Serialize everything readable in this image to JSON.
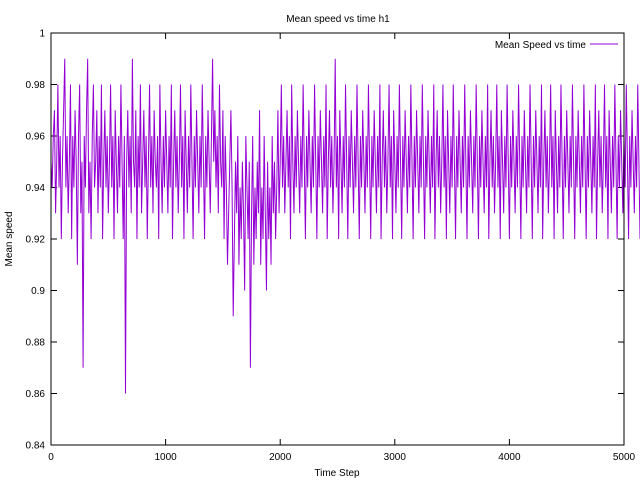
{
  "chart_data": {
    "type": "line",
    "title": "Mean speed vs time h1",
    "xlabel": "Time Step",
    "ylabel": "Mean speed",
    "xlim": [
      0,
      5000
    ],
    "ylim": [
      0.84,
      1.0
    ],
    "xticks": [
      0,
      1000,
      2000,
      3000,
      4000,
      5000
    ],
    "xtick_labels": [
      "0",
      "1000",
      "2000",
      "3000",
      "4000",
      "5000"
    ],
    "yticks": [
      0.84,
      0.86,
      0.88,
      0.9,
      0.92,
      0.94,
      0.96,
      0.98,
      1.0
    ],
    "ytick_labels": [
      "0.84",
      "0.86",
      "0.88",
      "0.9",
      "0.92",
      "0.94",
      "0.96",
      "0.98",
      "1"
    ],
    "grid": false,
    "legend_position": "top-right",
    "series": [
      {
        "name": "Mean Speed vs time",
        "color": "#9400d3",
        "x_step": 10,
        "y": [
          0.95,
          0.94,
          0.96,
          0.97,
          0.93,
          0.95,
          0.98,
          0.94,
          0.96,
          0.92,
          0.95,
          0.97,
          0.99,
          0.94,
          0.96,
          0.93,
          0.95,
          0.98,
          0.92,
          0.96,
          0.94,
          0.97,
          0.95,
          0.91,
          0.96,
          0.98,
          0.93,
          0.95,
          0.87,
          0.96,
          0.94,
          0.97,
          0.99,
          0.93,
          0.95,
          0.92,
          0.96,
          0.98,
          0.94,
          0.95,
          0.97,
          0.93,
          0.96,
          0.94,
          0.98,
          0.92,
          0.95,
          0.97,
          0.94,
          0.96,
          0.93,
          0.95,
          0.98,
          0.94,
          0.96,
          0.92,
          0.97,
          0.95,
          0.93,
          0.96,
          0.94,
          0.98,
          0.95,
          0.92,
          0.96,
          0.86,
          0.95,
          0.97,
          0.94,
          0.96,
          0.93,
          0.99,
          0.95,
          0.94,
          0.97,
          0.92,
          0.96,
          0.94,
          0.98,
          0.93,
          0.95,
          0.97,
          0.94,
          0.96,
          0.92,
          0.95,
          0.98,
          0.94,
          0.96,
          0.93,
          0.97,
          0.95,
          0.94,
          0.96,
          0.92,
          0.98,
          0.95,
          0.93,
          0.96,
          0.94,
          0.97,
          0.95,
          0.93,
          0.96,
          0.94,
          0.98,
          0.92,
          0.95,
          0.97,
          0.94,
          0.96,
          0.93,
          0.95,
          0.98,
          0.94,
          0.96,
          0.92,
          0.97,
          0.95,
          0.93,
          0.96,
          0.94,
          0.98,
          0.95,
          0.92,
          0.96,
          0.94,
          0.97,
          0.95,
          0.93,
          0.96,
          0.94,
          0.98,
          0.95,
          0.92,
          0.96,
          0.94,
          0.97,
          0.95,
          0.93,
          0.96,
          0.99,
          0.95,
          0.97,
          0.94,
          0.96,
          0.93,
          0.98,
          0.95,
          0.94,
          0.97,
          0.92,
          0.96,
          0.94,
          0.91,
          0.93,
          0.95,
          0.97,
          0.94,
          0.89,
          0.92,
          0.95,
          0.93,
          0.96,
          0.91,
          0.94,
          0.92,
          0.95,
          0.93,
          0.9,
          0.96,
          0.94,
          0.92,
          0.95,
          0.87,
          0.93,
          0.96,
          0.91,
          0.94,
          0.92,
          0.95,
          0.93,
          0.97,
          0.91,
          0.94,
          0.92,
          0.96,
          0.93,
          0.9,
          0.95,
          0.92,
          0.94,
          0.91,
          0.96,
          0.93,
          0.95,
          0.92,
          0.94,
          0.97,
          0.93,
          0.95,
          0.98,
          0.94,
          0.96,
          0.93,
          0.95,
          0.97,
          0.94,
          0.96,
          0.92,
          0.98,
          0.95,
          0.93,
          0.96,
          0.94,
          0.97,
          0.95,
          0.93,
          0.96,
          0.94,
          0.98,
          0.95,
          0.92,
          0.96,
          0.94,
          0.97,
          0.95,
          0.93,
          0.96,
          0.94,
          0.98,
          0.95,
          0.92,
          0.96,
          0.94,
          0.97,
          0.95,
          0.93,
          0.96,
          0.94,
          0.98,
          0.92,
          0.95,
          0.97,
          0.94,
          0.96,
          0.93,
          0.95,
          0.99,
          0.94,
          0.96,
          0.92,
          0.97,
          0.95,
          0.93,
          0.96,
          0.94,
          0.98,
          0.95,
          0.92,
          0.96,
          0.94,
          0.97,
          0.95,
          0.93,
          0.96,
          0.94,
          0.98,
          0.95,
          0.92,
          0.96,
          0.94,
          0.97,
          0.95,
          0.93,
          0.96,
          0.94,
          0.98,
          0.95,
          0.92,
          0.96,
          0.94,
          0.97,
          0.95,
          0.93,
          0.96,
          0.94,
          0.98,
          0.92,
          0.95,
          0.97,
          0.94,
          0.96,
          0.93,
          0.95,
          0.98,
          0.94,
          0.96,
          0.92,
          0.97,
          0.95,
          0.93,
          0.96,
          0.94,
          0.98,
          0.95,
          0.92,
          0.96,
          0.94,
          0.97,
          0.95,
          0.93,
          0.96,
          0.94,
          0.98,
          0.95,
          0.92,
          0.96,
          0.94,
          0.97,
          0.95,
          0.93,
          0.96,
          0.94,
          0.98,
          0.95,
          0.92,
          0.96,
          0.94,
          0.97,
          0.95,
          0.93,
          0.96,
          0.94,
          0.98,
          0.92,
          0.95,
          0.97,
          0.94,
          0.96,
          0.93,
          0.95,
          0.98,
          0.94,
          0.96,
          0.92,
          0.97,
          0.95,
          0.93,
          0.96,
          0.94,
          0.98,
          0.95,
          0.92,
          0.96,
          0.94,
          0.97,
          0.95,
          0.93,
          0.96,
          0.94,
          0.98,
          0.95,
          0.92,
          0.96,
          0.94,
          0.97,
          0.95,
          0.93,
          0.96,
          0.94,
          0.98,
          0.95,
          0.92,
          0.96,
          0.94,
          0.97,
          0.95,
          0.93,
          0.96,
          0.94,
          0.98,
          0.92,
          0.95,
          0.97,
          0.94,
          0.96,
          0.93,
          0.95,
          0.98,
          0.94,
          0.96,
          0.92,
          0.97,
          0.95,
          0.93,
          0.96,
          0.94,
          0.98,
          0.95,
          0.92,
          0.96,
          0.94,
          0.97,
          0.95,
          0.93,
          0.96,
          0.94,
          0.98,
          0.95,
          0.92,
          0.96,
          0.94,
          0.97,
          0.95,
          0.93,
          0.96,
          0.94,
          0.98,
          0.95,
          0.92,
          0.96,
          0.94,
          0.97,
          0.95,
          0.93,
          0.96,
          0.94,
          0.98,
          0.92,
          0.95,
          0.97,
          0.94,
          0.96,
          0.93,
          0.95,
          0.98,
          0.94,
          0.96,
          0.92,
          0.97,
          0.95,
          0.93,
          0.96,
          0.94,
          0.98,
          0.95,
          0.92,
          0.96,
          0.94,
          0.97,
          0.95,
          0.93,
          0.96,
          0.94,
          0.98,
          0.95,
          0.92,
          0.96,
          0.94,
          0.97,
          0.95,
          0.93,
          0.96,
          0.94,
          0.98,
          0.95,
          0.92,
          0.96,
          0.94,
          0.97,
          0.95,
          0.93,
          0.96,
          0.94,
          0.98,
          0.92,
          0.95,
          0.97,
          0.94,
          0.96,
          0.93,
          0.95,
          0.98,
          0.94,
          0.96,
          0.92,
          0.97,
          0.95,
          0.93,
          0.96,
          0.94,
          0.98,
          0.95,
          0.92,
          0.96,
          0.94,
          0.97,
          0.95,
          0.93,
          0.96,
          0.94,
          0.98,
          0.95,
          0.92,
          0.96,
          0.94,
          0.97,
          0.95,
          0.93,
          0.96,
          0.94,
          0.98,
          0.95,
          0.92,
          0.96,
          0.94,
          0.97,
          0.95,
          0.93,
          0.96,
          0.94,
          0.98,
          0.95
        ]
      }
    ]
  }
}
